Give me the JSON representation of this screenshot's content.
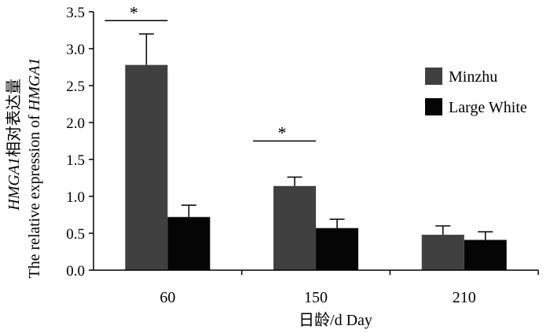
{
  "chart_data": {
    "type": "bar",
    "categories": [
      "60",
      "150",
      "210"
    ],
    "series": [
      {
        "name": "Minzhu",
        "color": "#404040",
        "values": [
          2.78,
          1.14,
          0.48
        ],
        "errors": [
          0.42,
          0.12,
          0.12
        ]
      },
      {
        "name": "Large White",
        "color": "#050505",
        "values": [
          0.72,
          0.57,
          0.41
        ],
        "errors": [
          0.16,
          0.12,
          0.11
        ]
      }
    ],
    "ylim": [
      0,
      3.5
    ],
    "yticks": [
      "0.0",
      "0.5",
      "1.0",
      "1.5",
      "2.0",
      "2.5",
      "3.0",
      "3.5"
    ],
    "ylabel_line1_italic": "HMGA1",
    "ylabel_line1_rest": "相对表达量",
    "ylabel_line2_plain": "The relative expression of ",
    "ylabel_line2_italic": "HMGA1",
    "xlabel": "日龄/d  Day",
    "significance": [
      {
        "category_index": 0,
        "label": "*",
        "y": 3.38
      },
      {
        "category_index": 1,
        "label": "*",
        "y": 1.75
      }
    ],
    "legend_position": "right"
  }
}
